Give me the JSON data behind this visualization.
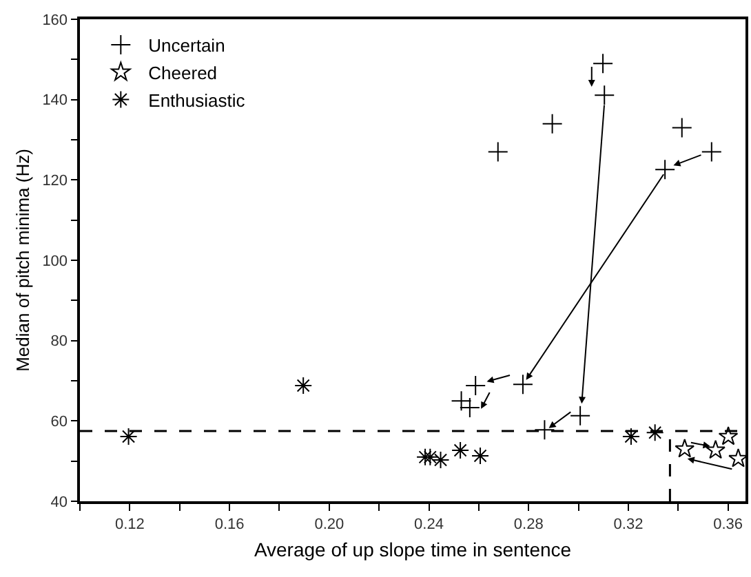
{
  "chart_data": {
    "type": "scatter",
    "xlabel": "Average of up slope time in sentence",
    "ylabel": "Median of pitch minima (Hz)",
    "xlim": [
      0.1,
      0.367
    ],
    "ylim": [
      40,
      160
    ],
    "xticks": [
      {
        "value": 0.1,
        "label": null
      },
      0.12,
      {
        "value": 0.14,
        "label": null
      },
      0.16,
      {
        "value": 0.18,
        "label": null
      },
      {
        "value": 0.2,
        "label": "0.20"
      },
      {
        "value": 0.22,
        "label": null
      },
      0.24,
      {
        "value": 0.26,
        "label": null
      },
      0.28,
      {
        "value": 0.3,
        "label": null
      },
      0.32,
      {
        "value": 0.34,
        "label": null
      },
      0.36
    ],
    "yticks": [
      40,
      {
        "value": 50,
        "label": null
      },
      60,
      {
        "value": 70,
        "label": null
      },
      80,
      {
        "value": 90,
        "label": null
      },
      100,
      {
        "value": 110,
        "label": null
      },
      120,
      {
        "value": 130,
        "label": null
      },
      140,
      {
        "value": 150,
        "label": null
      },
      160
    ],
    "legend": "top left",
    "ref_lines": [
      {
        "axis": "y",
        "value": 57.5,
        "line_style": "dashed",
        "color": "#000000"
      },
      {
        "axis": "x",
        "value": 0.3367,
        "line_style": "dashed",
        "color": "#000000"
      }
    ],
    "series": [
      {
        "name": "Uncertain",
        "marker": "cross",
        "color": "#000000",
        "x": [
          0.3098,
          0.3104,
          0.2895,
          0.2677,
          0.3415,
          0.3534,
          0.3347,
          0.2777,
          0.2587,
          0.253,
          0.2564,
          0.3007,
          0.2864
        ],
        "values": [
          149,
          141.1,
          134,
          127,
          133,
          127,
          122.6,
          69.1,
          68.8,
          65,
          63.3,
          61.3,
          57.8
        ]
      },
      {
        "name": "Cheered",
        "marker": "star",
        "color": "#000000",
        "x": [
          0.3426,
          0.355,
          0.3601,
          0.3641
        ],
        "values": [
          53,
          52.7,
          56.1,
          50.6
        ]
      },
      {
        "name": "Enthusiastic",
        "color": "#000000",
        "x": [
          0.1195,
          0.1896,
          0.2385,
          0.2405,
          0.2447,
          0.2526,
          0.2606,
          0.3211,
          0.3307
        ],
        "values": [
          56.1,
          68.8,
          51,
          51,
          50.3,
          52.7,
          51.3,
          56.1,
          57.1
        ]
      }
    ]
  }
}
